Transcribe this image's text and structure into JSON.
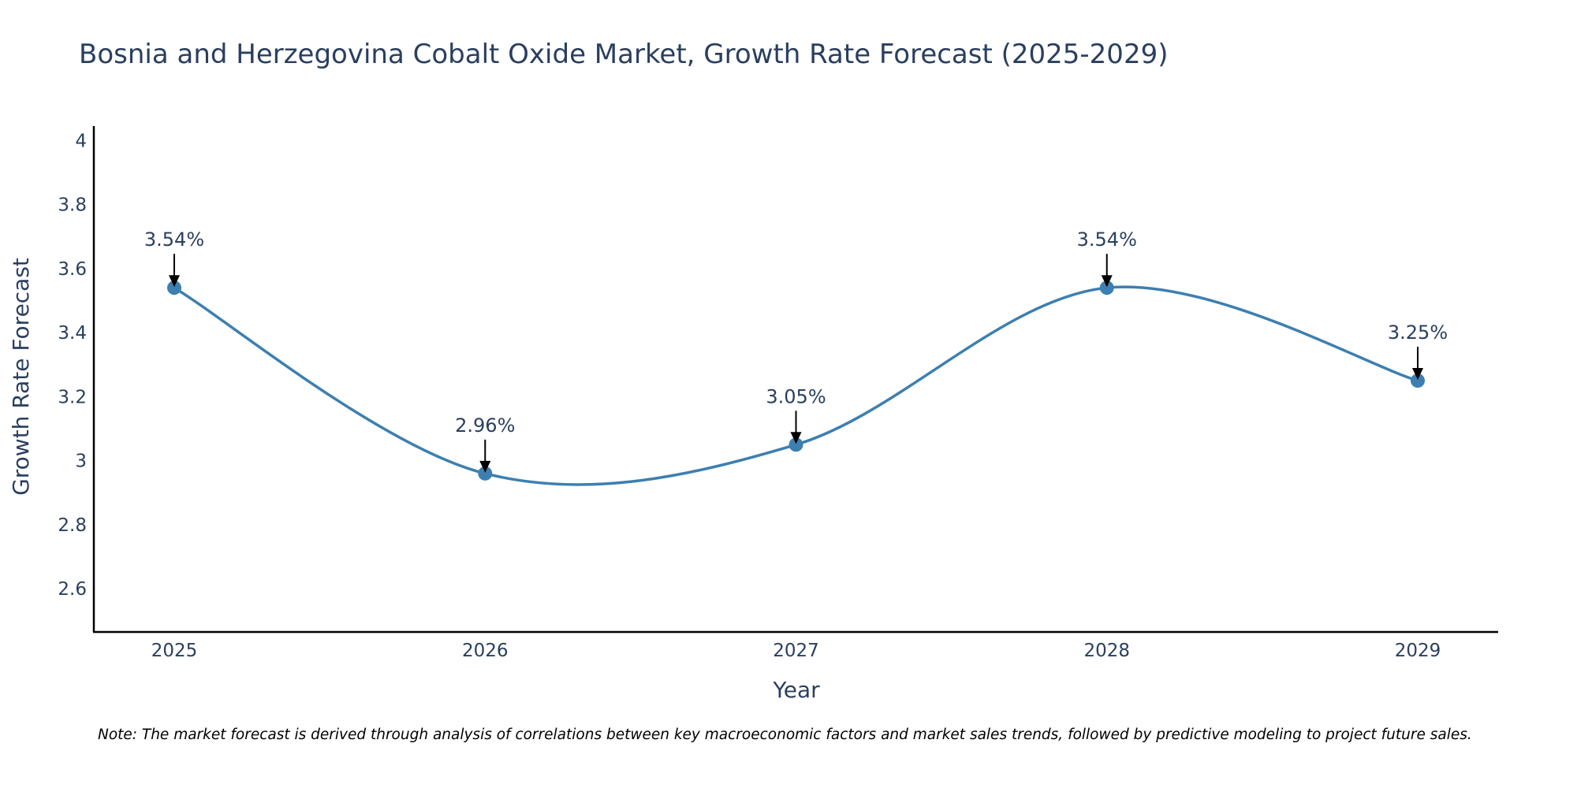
{
  "chart_data": {
    "type": "line",
    "title": "Bosnia and Herzegovina Cobalt Oxide Market, Growth Rate Forecast (2025-2029)",
    "xlabel": "Year",
    "ylabel": "Growth Rate Forecast",
    "categories": [
      "2025",
      "2026",
      "2027",
      "2028",
      "2029"
    ],
    "series": [
      {
        "name": "Growth Rate Forecast",
        "values": [
          3.54,
          2.96,
          3.05,
          3.54,
          3.25
        ],
        "color": "#3d7fb0"
      }
    ],
    "data_labels": [
      "3.54%",
      "2.96%",
      "3.05%",
      "3.54%",
      "3.25%"
    ],
    "yticks": [
      2.6,
      2.8,
      3,
      3.2,
      3.4,
      3.6,
      3.8,
      4
    ],
    "ytick_labels": [
      "2.6",
      "2.8",
      "3",
      "3.2",
      "3.4",
      "3.6",
      "3.8",
      "4"
    ],
    "ylim": [
      2.465,
      4.045
    ],
    "grid": false,
    "line_shape": "spline"
  },
  "note": "Note: The market forecast is derived through analysis of correlations between key macroeconomic factors and market sales trends, followed by predictive modeling to project future sales."
}
